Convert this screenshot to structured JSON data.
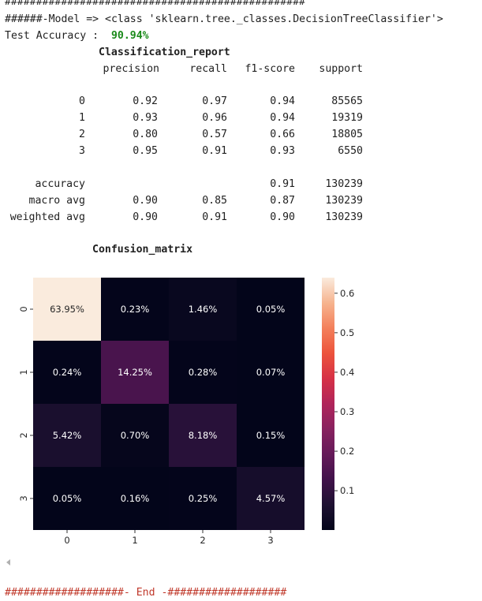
{
  "output": {
    "hash_line": "################################################",
    "model_line": "######-Model => <class 'sklearn.tree._classes.DecisionTreeClassifier'>",
    "accuracy_prefix": "Test Accuracy :  ",
    "accuracy_value": "90.94%",
    "report_title": "Classification_report",
    "report_headers": [
      "precision",
      "recall",
      "f1-score",
      "support"
    ],
    "report_rows": [
      {
        "label": "0",
        "precision": "0.92",
        "recall": "0.97",
        "f1": "0.94",
        "support": "85565"
      },
      {
        "label": "1",
        "precision": "0.93",
        "recall": "0.96",
        "f1": "0.94",
        "support": "19319"
      },
      {
        "label": "2",
        "precision": "0.80",
        "recall": "0.57",
        "f1": "0.66",
        "support": "18805"
      },
      {
        "label": "3",
        "precision": "0.95",
        "recall": "0.91",
        "f1": "0.93",
        "support": "6550"
      }
    ],
    "summary_rows": [
      {
        "label": "accuracy",
        "precision": "",
        "recall": "",
        "f1": "0.91",
        "support": "130239"
      },
      {
        "label": "macro avg",
        "precision": "0.90",
        "recall": "0.85",
        "f1": "0.87",
        "support": "130239"
      },
      {
        "label": "weighted avg",
        "precision": "0.90",
        "recall": "0.91",
        "f1": "0.90",
        "support": "130239"
      }
    ],
    "matrix_title": "Confusion_matrix",
    "end_line": "###################- End -###################"
  },
  "chart_data": {
    "type": "heatmap",
    "x_tick_labels": [
      "0",
      "1",
      "2",
      "3"
    ],
    "y_tick_labels": [
      "0",
      "1",
      "2",
      "3"
    ],
    "values": [
      [
        63.95,
        0.23,
        1.46,
        0.05
      ],
      [
        0.24,
        14.25,
        0.28,
        0.07
      ],
      [
        5.42,
        0.7,
        8.18,
        0.15
      ],
      [
        0.05,
        0.16,
        0.25,
        4.57
      ]
    ],
    "annotations": [
      [
        "63.95%",
        "0.23%",
        "1.46%",
        "0.05%"
      ],
      [
        "0.24%",
        "14.25%",
        "0.28%",
        "0.07%"
      ],
      [
        "5.42%",
        "0.70%",
        "8.18%",
        "0.15%"
      ],
      [
        "0.05%",
        "0.16%",
        "0.25%",
        "4.57%"
      ]
    ],
    "colorbar_ticks": [
      "0.1",
      "0.2",
      "0.3",
      "0.4",
      "0.5",
      "0.6"
    ],
    "colorbar_range": [
      0.0005,
      0.6395
    ],
    "colormap": "rocket"
  }
}
